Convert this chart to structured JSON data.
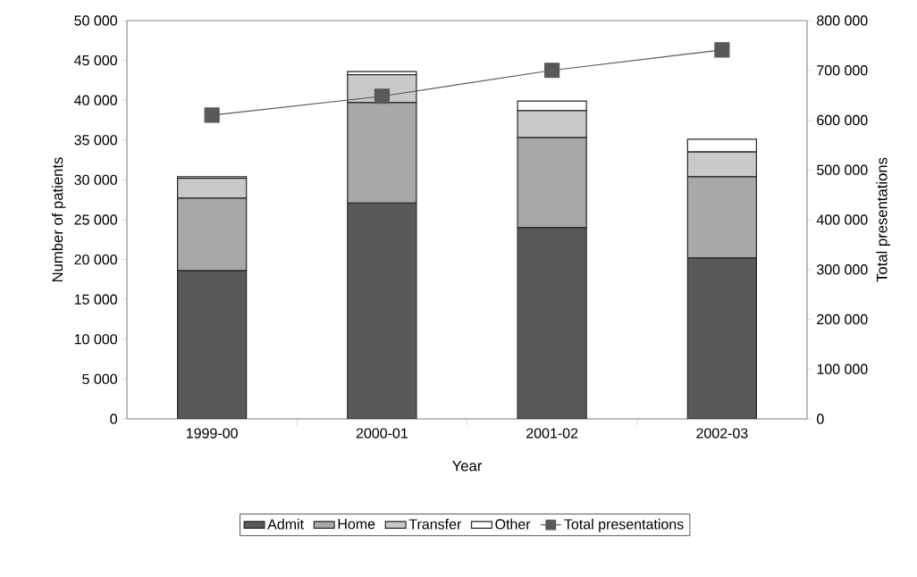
{
  "chart_data": {
    "type": "bar",
    "stacked": true,
    "categories": [
      "1999-00",
      "2000-01",
      "2001-02",
      "2002-03"
    ],
    "xlabel": "Year",
    "ylabel": "Number of patients",
    "y2label": "Total presentations",
    "ylim": [
      0,
      50000
    ],
    "yticks": [
      {
        "value": 0,
        "label": "0"
      },
      {
        "value": 5000,
        "label": "5 000"
      },
      {
        "value": 10000,
        "label": "10 000"
      },
      {
        "value": 15000,
        "label": "15 000"
      },
      {
        "value": 20000,
        "label": "20 000"
      },
      {
        "value": 25000,
        "label": "25 000"
      },
      {
        "value": 30000,
        "label": "30 000"
      },
      {
        "value": 35000,
        "label": "35 000"
      },
      {
        "value": 40000,
        "label": "40 000"
      },
      {
        "value": 45000,
        "label": "45 000"
      },
      {
        "value": 50000,
        "label": "50 000"
      }
    ],
    "y2lim": [
      0,
      800000
    ],
    "y2ticks": [
      {
        "value": 0,
        "label": "0"
      },
      {
        "value": 100000,
        "label": "100 000"
      },
      {
        "value": 200000,
        "label": "200 000"
      },
      {
        "value": 300000,
        "label": "300 000"
      },
      {
        "value": 400000,
        "label": "400 000"
      },
      {
        "value": 500000,
        "label": "500 000"
      },
      {
        "value": 600000,
        "label": "600 000"
      },
      {
        "value": 700000,
        "label": "700 000"
      },
      {
        "value": 800000,
        "label": "800 000"
      }
    ],
    "legend": "bottom",
    "series": [
      {
        "name": "Admit",
        "color": "#58595b",
        "values": [
          18600,
          27100,
          24000,
          20200
        ]
      },
      {
        "name": "Home",
        "color": "#a7a8aa",
        "values": [
          9100,
          12600,
          11300,
          10200
        ]
      },
      {
        "name": "Transfer",
        "color": "#c8c9cb",
        "values": [
          2500,
          3500,
          3400,
          3100
        ]
      },
      {
        "name": "Other",
        "color": "#ffffff",
        "values": [
          200,
          400,
          1200,
          1600
        ]
      },
      {
        "name": "Total presentations",
        "type": "line",
        "axis": "y2",
        "marker": "square",
        "color": "#58595b",
        "values": [
          610000,
          648000,
          700000,
          741000
        ]
      }
    ]
  }
}
